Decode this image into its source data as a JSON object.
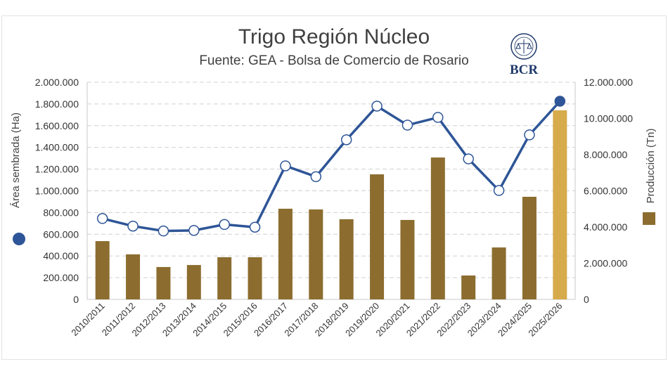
{
  "chart_data": {
    "type": "bar+line",
    "title": "Trigo Región Núcleo",
    "subtitle": "Fuente: GEA - Bolsa de Comercio de Rosario",
    "logo_text": "BCR",
    "categories": [
      "2010/2011",
      "2011/2012",
      "2012/2013",
      "2013/2014",
      "2014/2015",
      "2015/2016",
      "2016/2017",
      "2017/2018",
      "2018/2019",
      "2019/2020",
      "2020/2021",
      "2021/2022",
      "2022/2023",
      "2023/2024",
      "2024/2025",
      "2025/2026"
    ],
    "series": [
      {
        "name": "Área sembrada (Ha)",
        "type": "line",
        "axis": "left",
        "color": "#2e5597",
        "values": [
          745000,
          675000,
          630000,
          635000,
          690000,
          665000,
          1230000,
          1130000,
          1470000,
          1780000,
          1605000,
          1676000,
          1294000,
          1003000,
          1515000,
          1825000
        ]
      },
      {
        "name": "Producción (Tn)",
        "type": "bar",
        "axis": "right",
        "color": "#8c6d2f",
        "highlight_color": "#d6ab4c",
        "values": [
          3220000,
          2490000,
          1790000,
          1900000,
          2330000,
          2330000,
          5010000,
          4970000,
          4430000,
          6910000,
          4390000,
          7840000,
          1320000,
          2870000,
          5670000,
          10450000
        ]
      }
    ],
    "ylabel_left": "Área sembrada (Ha)",
    "ylabel_right": "Producción (Tn)",
    "ylim_left": [
      0,
      2000000
    ],
    "ylim_right": [
      0,
      12000000
    ],
    "yticks_left": [
      "0",
      "200.000",
      "400.000",
      "600.000",
      "800.000",
      "1.000.000",
      "1.200.000",
      "1.400.000",
      "1.600.000",
      "1.800.000",
      "2.000.000"
    ],
    "yticks_right": [
      "0",
      "2.000.000",
      "4.000.000",
      "6.000.000",
      "8.000.000",
      "10.000.000",
      "12.000.000"
    ],
    "grid": true
  }
}
